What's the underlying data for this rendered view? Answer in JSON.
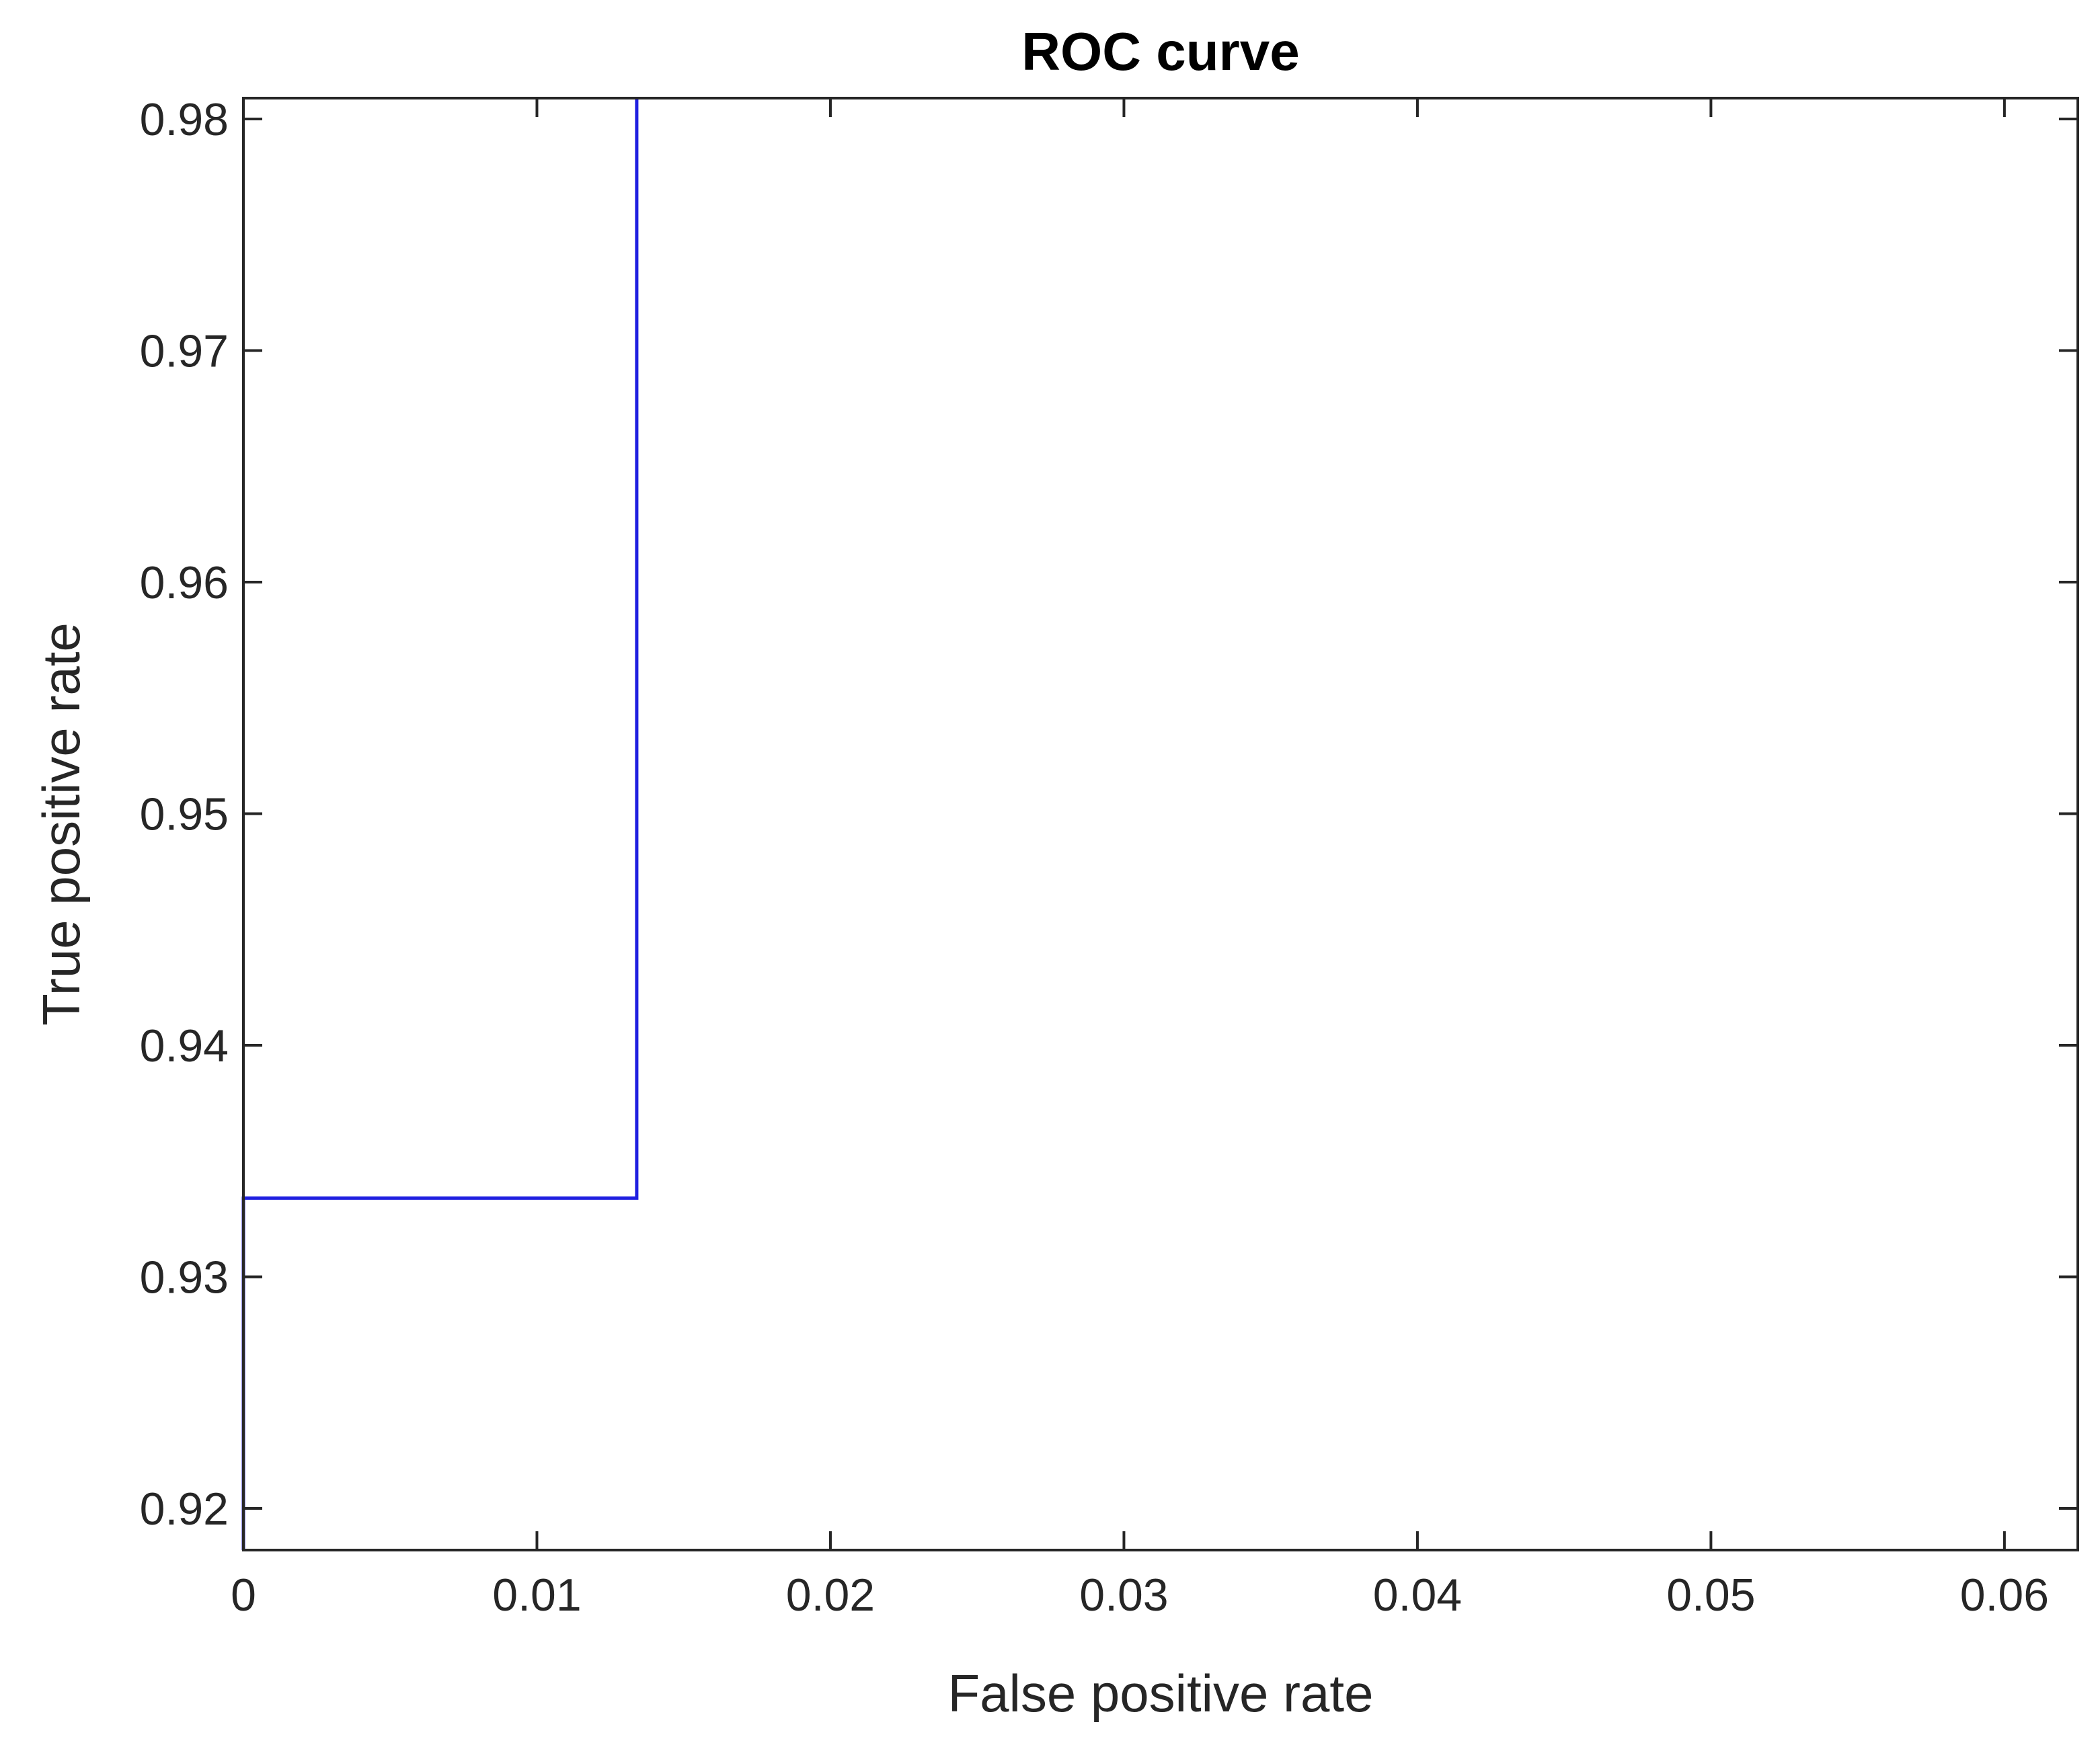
{
  "chart_data": {
    "type": "line",
    "title": "ROC curve",
    "xlabel": "False positive rate",
    "ylabel": "True positive rate",
    "xlim": [
      0,
      0.0625
    ],
    "ylim": [
      0.9182,
      0.9809
    ],
    "xticks": [
      0,
      0.01,
      0.02,
      0.03,
      0.04,
      0.05,
      0.06
    ],
    "xtick_labels": [
      "0",
      "0.01",
      "0.02",
      "0.03",
      "0.04",
      "0.05",
      "0.06"
    ],
    "yticks": [
      0.92,
      0.93,
      0.94,
      0.95,
      0.96,
      0.97,
      0.98
    ],
    "ytick_labels": [
      "0.92",
      "0.93",
      "0.94",
      "0.95",
      "0.96",
      "0.97",
      "0.98"
    ],
    "grid": false,
    "box": true,
    "series": [
      {
        "color": "#1f1fe0",
        "x": [
          0,
          0,
          0.0134,
          0.0134
        ],
        "y": [
          0.9182,
          0.9334,
          0.9334,
          0.9809
        ]
      }
    ]
  }
}
